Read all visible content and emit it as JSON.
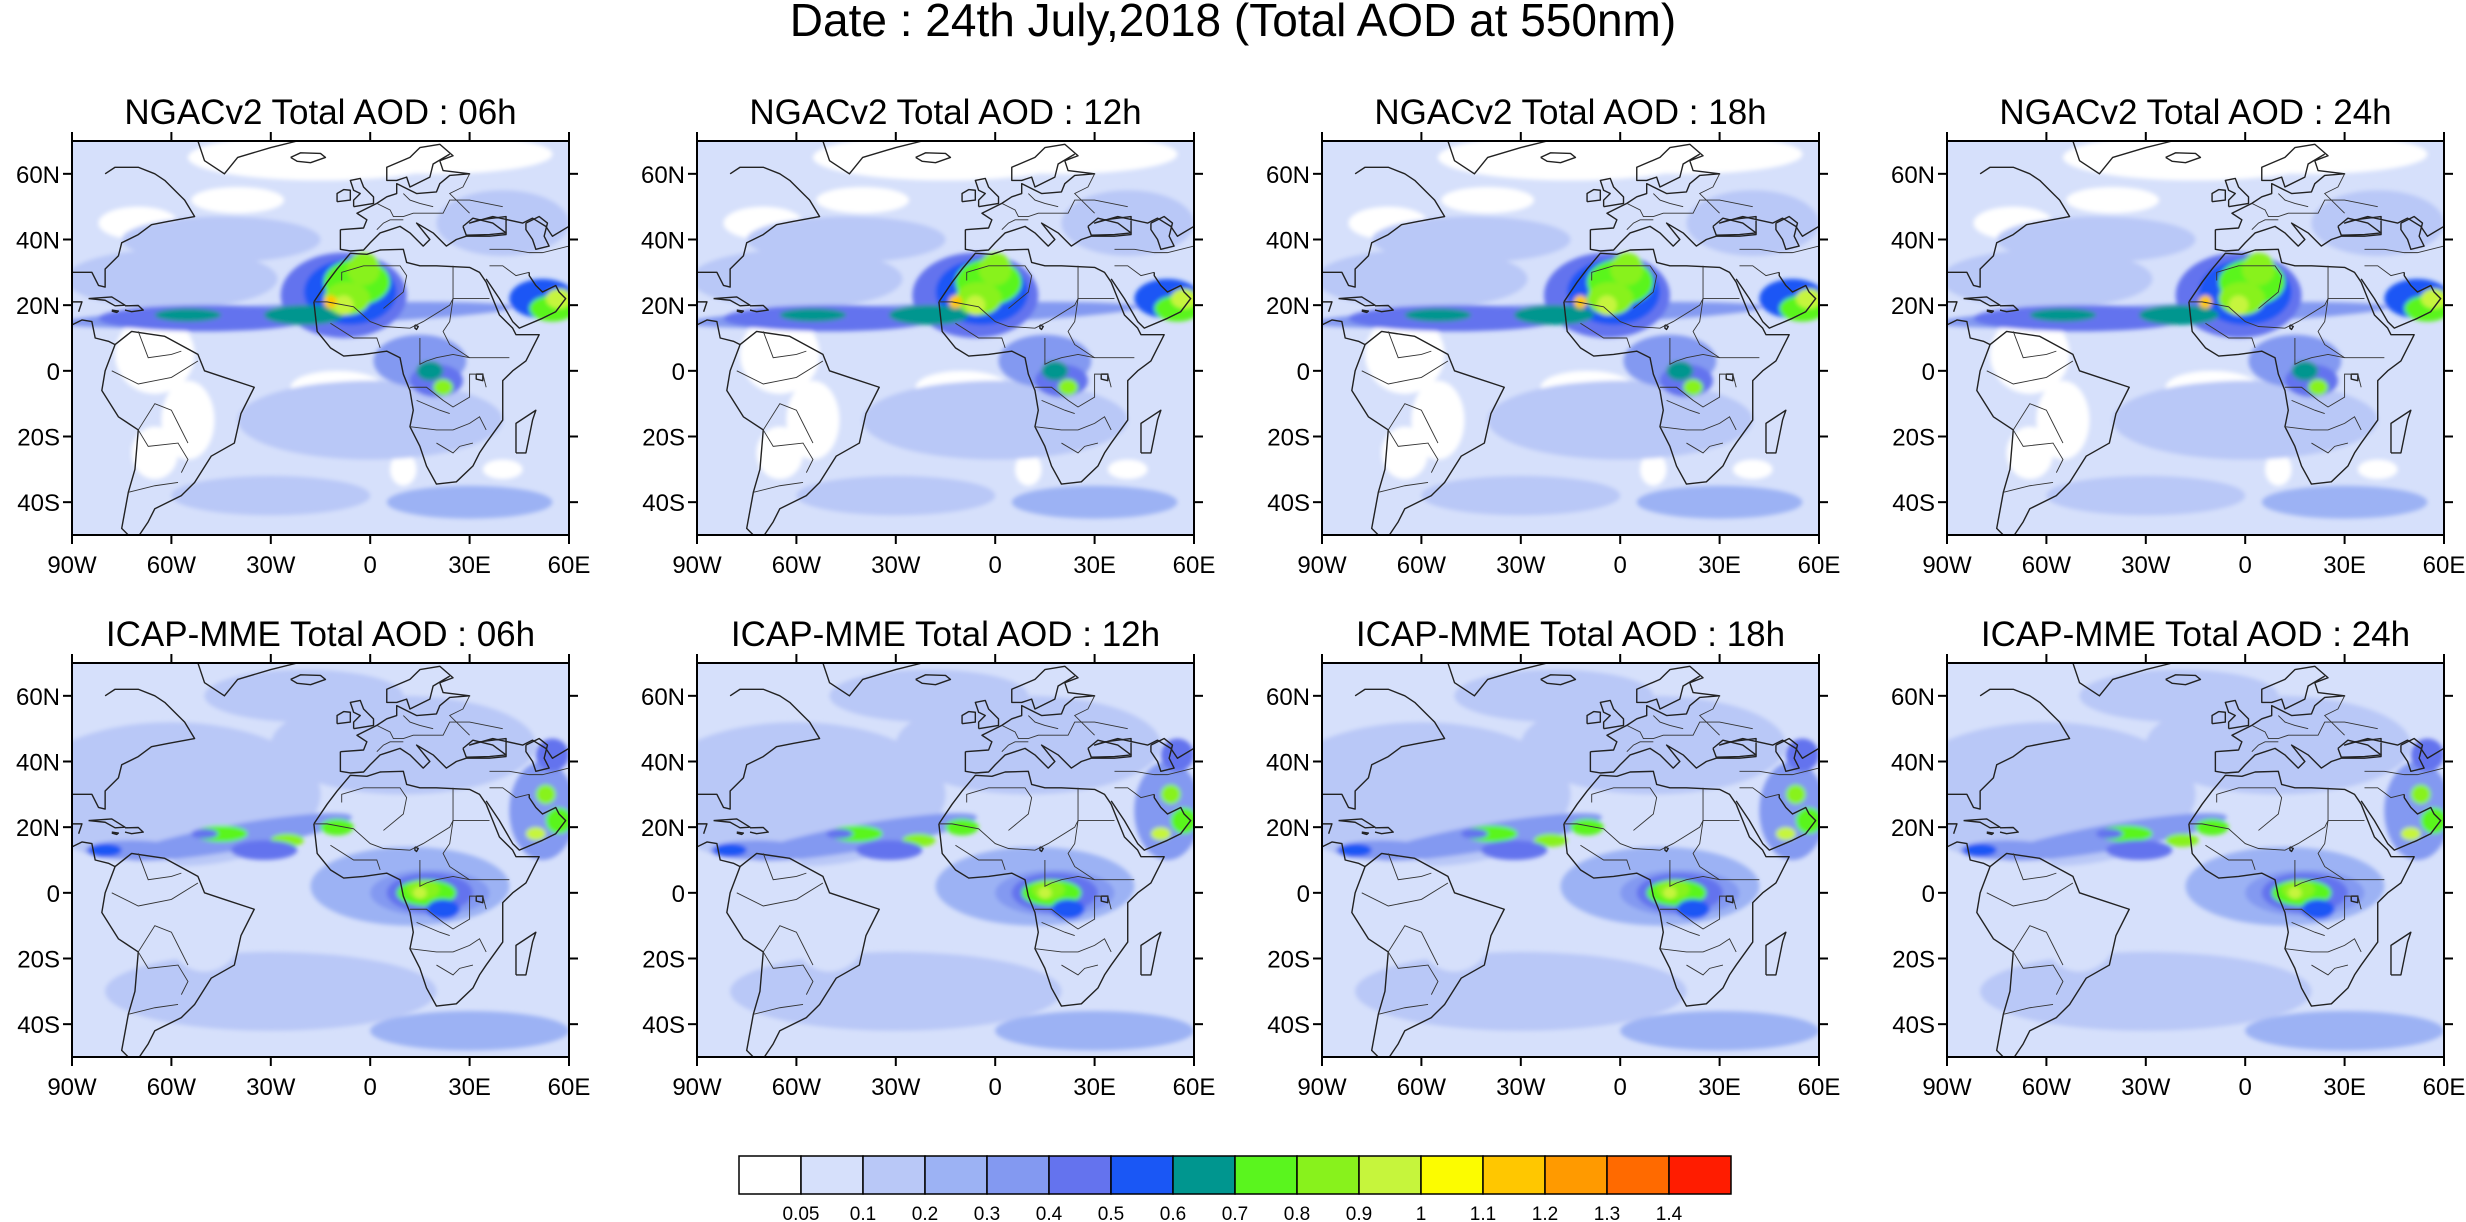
{
  "figure": {
    "title": "Date : 24th July,2018 (Total AOD at 550nm)"
  },
  "axes": {
    "lat_ticks": [
      "60N",
      "40N",
      "20N",
      "0",
      "20S",
      "40S"
    ],
    "lat_values": [
      60,
      40,
      20,
      0,
      -20,
      -40
    ],
    "lon_ticks": [
      "90W",
      "60W",
      "30W",
      "0",
      "30E",
      "60E"
    ],
    "lon_values": [
      -90,
      -60,
      -30,
      0,
      30,
      60
    ],
    "lon_range": [
      -90,
      60
    ],
    "lat_range": [
      -50,
      70
    ]
  },
  "panels": [
    {
      "title": "NGACv2 Total AOD : 06h",
      "model": "NGACv2",
      "hour": 6
    },
    {
      "title": "NGACv2 Total AOD : 12h",
      "model": "NGACv2",
      "hour": 12
    },
    {
      "title": "NGACv2 Total AOD : 18h",
      "model": "NGACv2",
      "hour": 18
    },
    {
      "title": "NGACv2 Total AOD : 24h",
      "model": "NGACv2",
      "hour": 24
    },
    {
      "title": "ICAP-MME Total AOD : 06h",
      "model": "ICAP-MME",
      "hour": 6
    },
    {
      "title": "ICAP-MME Total AOD : 12h",
      "model": "ICAP-MME",
      "hour": 12
    },
    {
      "title": "ICAP-MME Total AOD : 18h",
      "model": "ICAP-MME",
      "hour": 18
    },
    {
      "title": "ICAP-MME Total AOD : 24h",
      "model": "ICAP-MME",
      "hour": 24
    }
  ],
  "colorbar": {
    "labels": [
      "0.05",
      "0.1",
      "0.2",
      "0.3",
      "0.4",
      "0.5",
      "0.6",
      "0.7",
      "0.8",
      "0.9",
      "1",
      "1.1",
      "1.2",
      "1.3",
      "1.4"
    ],
    "colors": [
      "#ffffff",
      "#d6e0fb",
      "#b9c8f7",
      "#9cb2f4",
      "#8399f1",
      "#6473ee",
      "#1a57f5",
      "#00968f",
      "#5af51e",
      "#88f21c",
      "#c6f53c",
      "#fcfc00",
      "#ffc700",
      "#ff9a00",
      "#ff6a00",
      "#ff1c00"
    ]
  }
}
